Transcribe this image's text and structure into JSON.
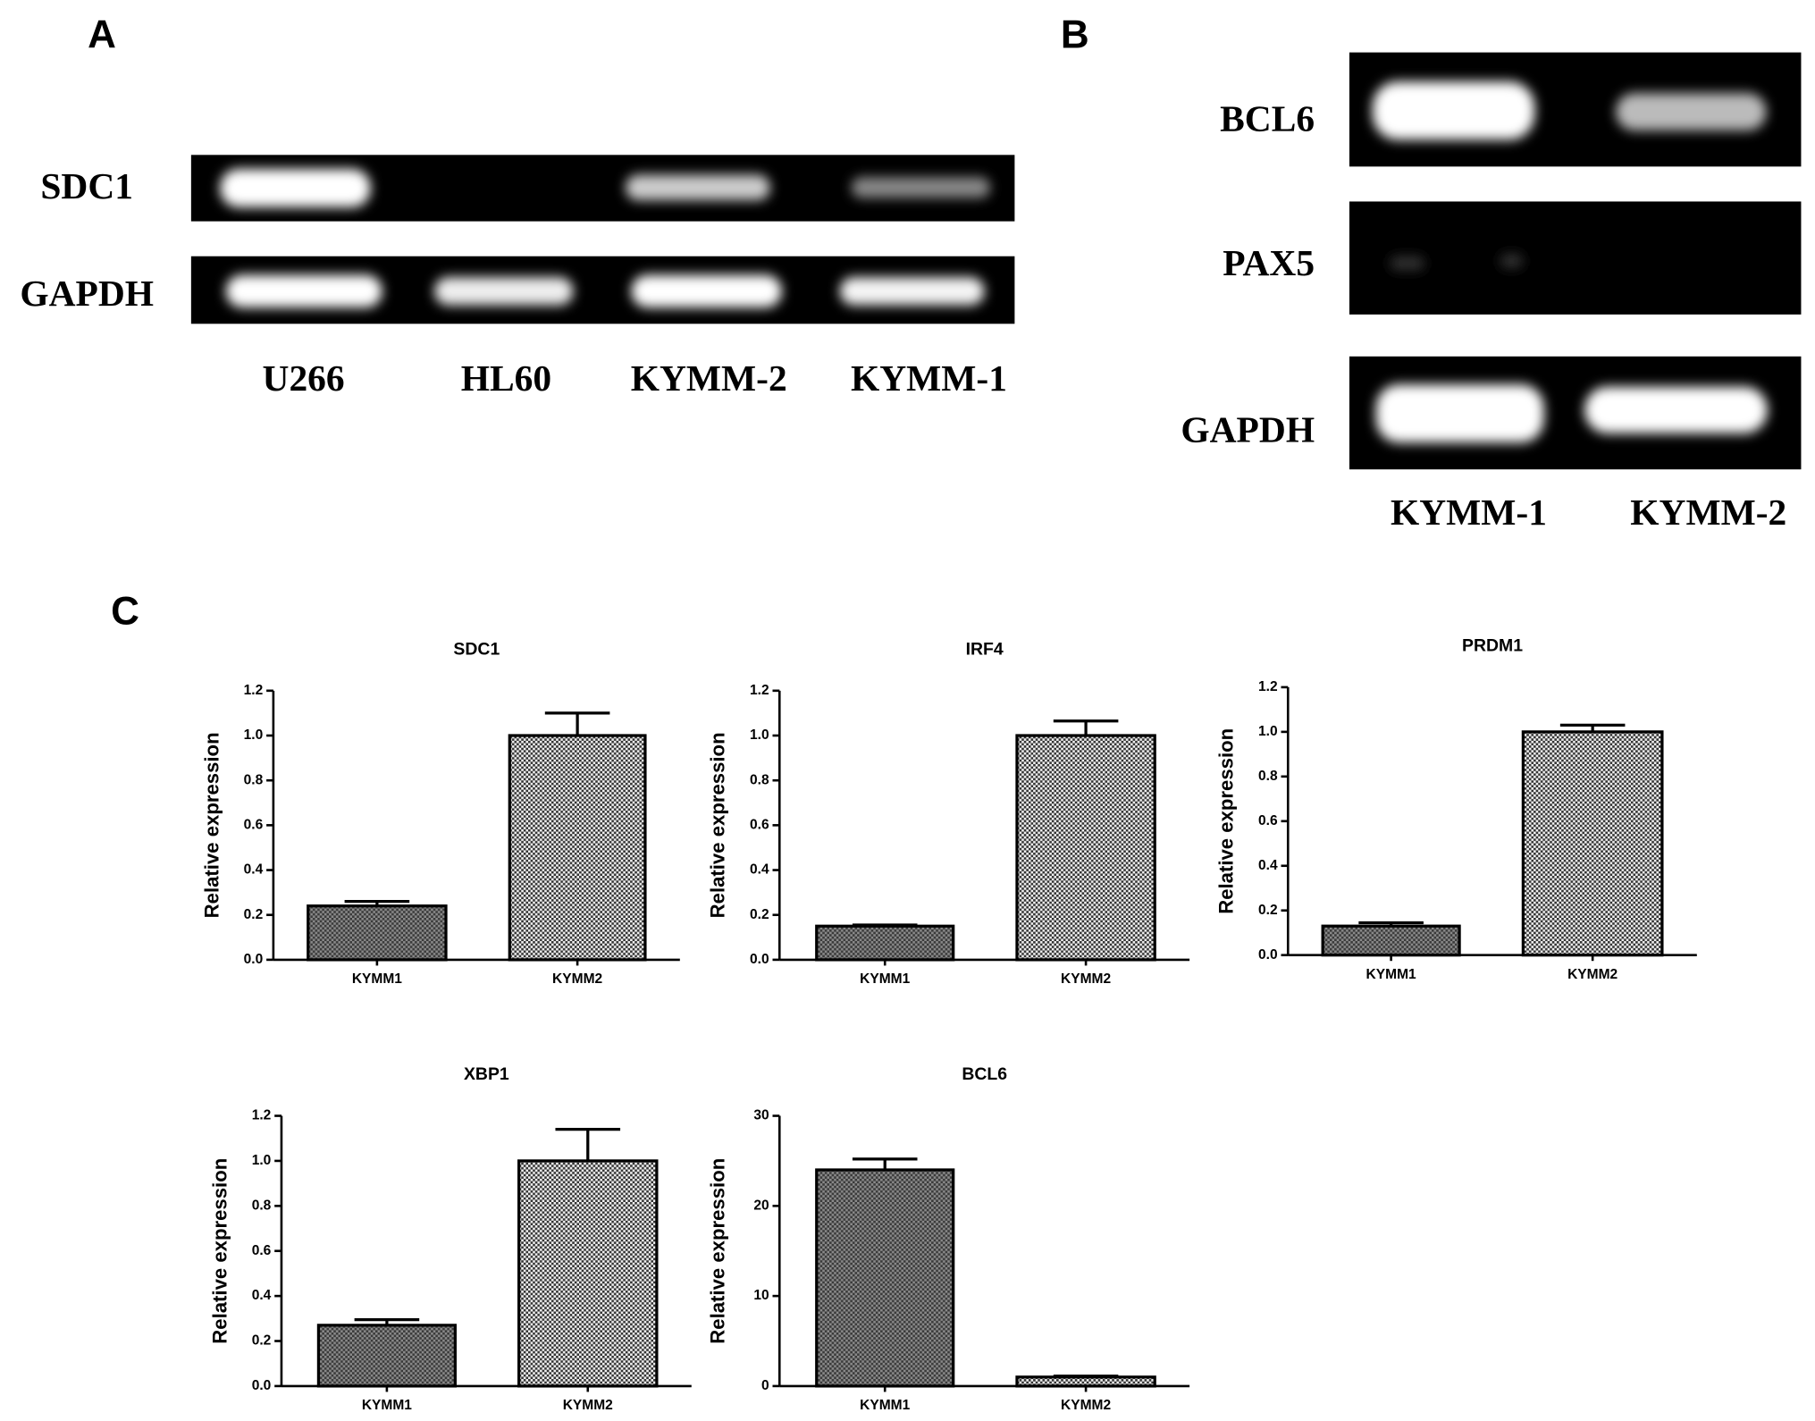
{
  "panel_a": {
    "label": "A",
    "rows": [
      "SDC1",
      "GAPDH"
    ],
    "lanes": [
      "U266",
      "HL60",
      "KYMM-2",
      "KYMM-1"
    ]
  },
  "panel_b": {
    "label": "B",
    "rows": [
      "BCL6",
      "PAX5",
      "GAPDH"
    ],
    "lanes": [
      "KYMM-1",
      "KYMM-2"
    ]
  },
  "panel_c": {
    "label": "C"
  },
  "chart_data": [
    {
      "type": "bar",
      "title": "SDC1",
      "y_label": "Relative expression",
      "categories": [
        "KYMM1",
        "KYMM2"
      ],
      "values": [
        0.24,
        1.0
      ],
      "errors": [
        0.02,
        0.1
      ],
      "ylim": [
        0,
        1.2
      ],
      "yticks": [
        {
          "value": 0,
          "label": "0.0"
        },
        0.2,
        0.4,
        0.6,
        0.8,
        {
          "value": 1,
          "label": "1.0"
        },
        1.2
      ]
    },
    {
      "type": "bar",
      "title": "IRF4",
      "y_label": "Relative expression",
      "categories": [
        "KYMM1",
        "KYMM2"
      ],
      "values": [
        0.15,
        1.0
      ],
      "errors": [
        0.005,
        0.065
      ],
      "ylim": [
        0,
        1.2
      ],
      "yticks": [
        {
          "value": 0,
          "label": "0.0"
        },
        0.2,
        0.4,
        0.6,
        0.8,
        {
          "value": 1,
          "label": "1.0"
        },
        1.2
      ]
    },
    {
      "type": "bar",
      "title": "PRDM1",
      "y_label": "Relative expression",
      "categories": [
        "KYMM1",
        "KYMM2"
      ],
      "values": [
        0.13,
        1.0
      ],
      "errors": [
        0.015,
        0.03
      ],
      "ylim": [
        0,
        1.2
      ],
      "yticks": [
        {
          "value": 0,
          "label": "0.0"
        },
        0.2,
        0.4,
        0.6,
        0.8,
        {
          "value": 1,
          "label": "1.0"
        },
        1.2
      ]
    },
    {
      "type": "bar",
      "title": "XBP1",
      "y_label": "Relative expression",
      "categories": [
        "KYMM1",
        "KYMM2"
      ],
      "values": [
        0.27,
        1.0
      ],
      "errors": [
        0.025,
        0.14
      ],
      "ylim": [
        0,
        1.2
      ],
      "yticks": [
        {
          "value": 0,
          "label": "0.0"
        },
        0.2,
        0.4,
        0.6,
        0.8,
        {
          "value": 1,
          "label": "1.0"
        },
        1.2
      ]
    },
    {
      "type": "bar",
      "title": "BCL6",
      "y_label": "Relative expression",
      "categories": [
        "KYMM1",
        "KYMM2"
      ],
      "values": [
        24,
        1
      ],
      "errors": [
        1.2,
        0.1
      ],
      "ylim": [
        0,
        30
      ],
      "yticks": [
        0,
        10,
        20,
        30
      ]
    }
  ]
}
